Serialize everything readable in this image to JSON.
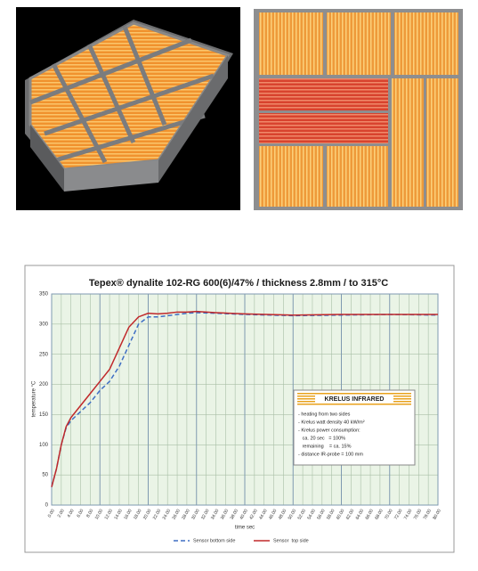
{
  "chart_data": {
    "type": "line",
    "title": "Tepex® dynalite 102-RG 600(6)/47% / thickness 2.8mm / to 315°C",
    "x_label": "time sec",
    "y_label": "temperature °C",
    "x": [
      0,
      1,
      2,
      3,
      4,
      6,
      8,
      10,
      12,
      14,
      16,
      18,
      20,
      22,
      24,
      26,
      28,
      30,
      34,
      40,
      50,
      60,
      70,
      80
    ],
    "series": [
      {
        "name": "Sensor bottom side",
        "color": "#3f6fc4",
        "dashed": true,
        "values": [
          30,
          60,
          100,
          128,
          140,
          155,
          170,
          190,
          205,
          230,
          265,
          300,
          312,
          312,
          314,
          316,
          318,
          319,
          318,
          316,
          314,
          315,
          316,
          315
        ]
      },
      {
        "name": "Sensor  top side",
        "color": "#c0282a",
        "dashed": false,
        "values": [
          30,
          60,
          100,
          130,
          145,
          165,
          185,
          205,
          225,
          260,
          295,
          312,
          318,
          317,
          318,
          320,
          320,
          321,
          319,
          317,
          315,
          316,
          316,
          316
        ]
      }
    ],
    "xlim": [
      0,
      80
    ],
    "ylim": [
      0,
      350
    ],
    "yticks": [
      0,
      50,
      100,
      150,
      200,
      250,
      300,
      350
    ],
    "xticks": [
      {
        "value": 0,
        "label": "0.00"
      },
      {
        "value": 2,
        "label": "2.00"
      },
      {
        "value": 4,
        "label": "4.00"
      },
      {
        "value": 6,
        "label": "6.00"
      },
      {
        "value": 8,
        "label": "8.00"
      },
      {
        "value": 10,
        "label": "10.00"
      },
      {
        "value": 12,
        "label": "12.00"
      },
      {
        "value": 14,
        "label": "14.00"
      },
      {
        "value": 16,
        "label": "16.00"
      },
      {
        "value": 18,
        "label": "18.00"
      },
      {
        "value": 20,
        "label": "20.00"
      },
      {
        "value": 22,
        "label": "22.00"
      },
      {
        "value": 24,
        "label": "24.00"
      },
      {
        "value": 26,
        "label": "26.00"
      },
      {
        "value": 28,
        "label": "28.00"
      },
      {
        "value": 30,
        "label": "30.00"
      },
      {
        "value": 32,
        "label": "32.00"
      },
      {
        "value": 34,
        "label": "34.00"
      },
      {
        "value": 36,
        "label": "36.00"
      },
      {
        "value": 38,
        "label": "38.00"
      },
      {
        "value": 40,
        "label": "40.00"
      },
      {
        "value": 42,
        "label": "42.00"
      },
      {
        "value": 44,
        "label": "44.00"
      },
      {
        "value": 46,
        "label": "46.00"
      },
      {
        "value": 48,
        "label": "48.00"
      },
      {
        "value": 50,
        "label": "50.00"
      },
      {
        "value": 52,
        "label": "52.00"
      },
      {
        "value": 54,
        "label": "54.00"
      },
      {
        "value": 56,
        "label": "56.00"
      },
      {
        "value": 58,
        "label": "58.00"
      },
      {
        "value": 60,
        "label": "60.00"
      },
      {
        "value": 62,
        "label": "62.00"
      },
      {
        "value": 64,
        "label": "64.00"
      },
      {
        "value": 66,
        "label": "66.00"
      },
      {
        "value": 68,
        "label": "68.00"
      },
      {
        "value": 70,
        "label": "70.00"
      },
      {
        "value": 72,
        "label": "72.00"
      },
      {
        "value": 74,
        "label": "74.00"
      },
      {
        "value": 76,
        "label": "76.00"
      },
      {
        "value": 78,
        "label": "78.00"
      },
      {
        "value": 80,
        "label": "80.00"
      }
    ],
    "grid": true,
    "legend": "bottom",
    "annotation": {
      "title": "KRELUS INFRARED",
      "lines": [
        "- heating from two sides",
        "- Krelus watt density 40 kW/m²",
        "- Krelus power consumption:",
        "   ca. 20 sec   = 100%",
        "   remaining    = ca. 15%",
        "- distance IR-probe = 100 mm"
      ]
    }
  }
}
